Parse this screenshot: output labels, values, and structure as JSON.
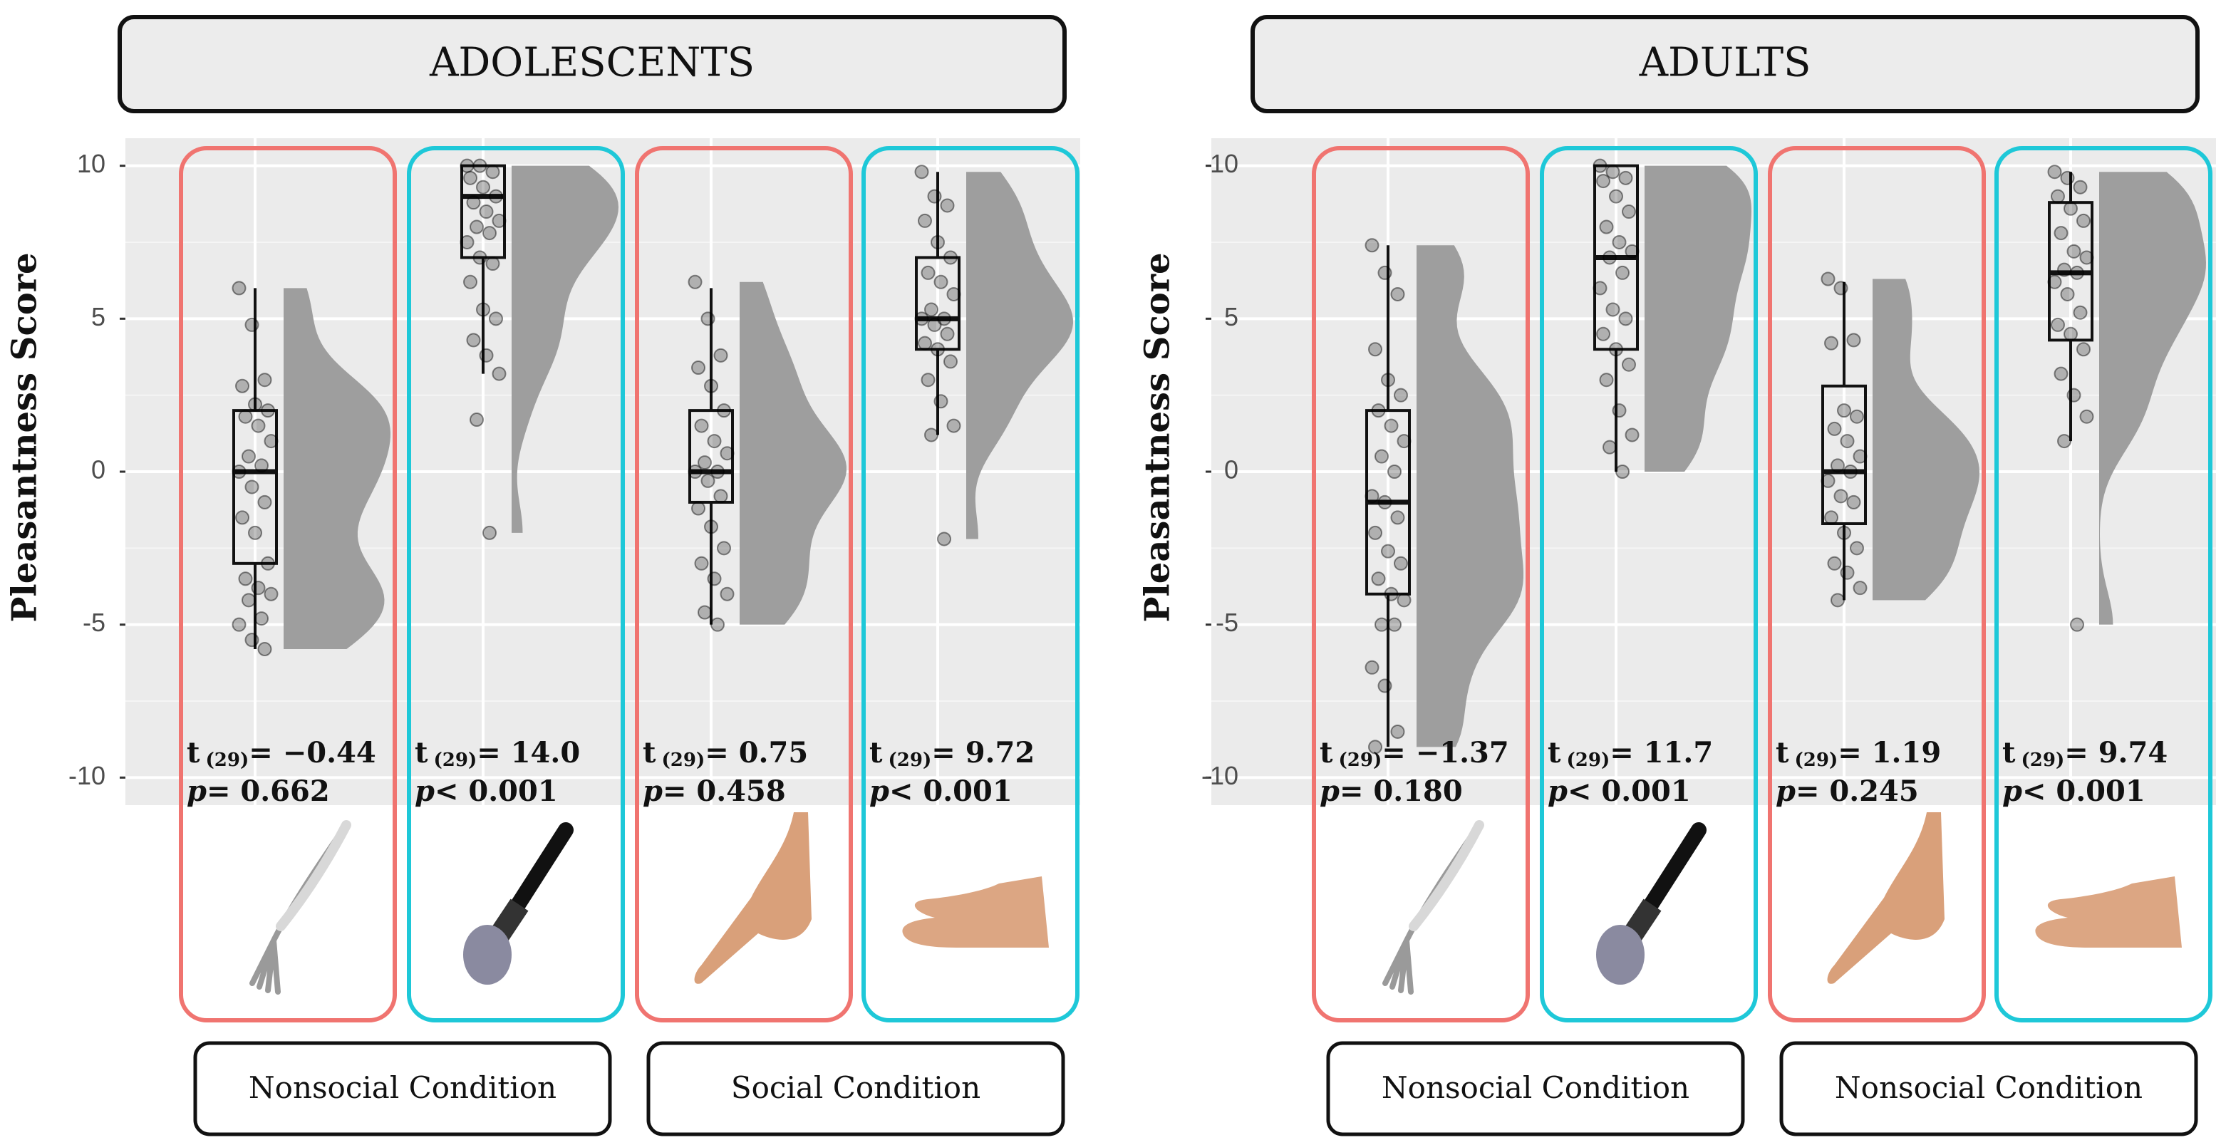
{
  "chart_data": [
    {
      "type": "raincloud",
      "title": "ADOLESCENTS",
      "y_label": "Pleasantness Score",
      "ylim": [
        -10.9,
        10.9
      ],
      "yticks": [
        10,
        5,
        0,
        -5,
        -10
      ],
      "grid": true,
      "conditions": [
        "Nonsocial Condition",
        "Social Condition"
      ],
      "groups": [
        {
          "color": "#f07470",
          "whisker_low": -5.8,
          "q1": -3,
          "median": 0,
          "q3": 2,
          "whisker_high": 6,
          "points": [
            6,
            4.8,
            3,
            2.8,
            2.2,
            2,
            1.8,
            1.5,
            1,
            0.5,
            0.2,
            0,
            -0.5,
            -1,
            -1.5,
            -2,
            -3,
            -3.5,
            -3.8,
            -4,
            -4.2,
            -4.8,
            -5,
            -5.5,
            -5.8
          ],
          "stat_t": [
            "t",
            "(29)",
            "= −0.44"
          ],
          "stat_p": [
            "p",
            "= 0.662"
          ]
        },
        {
          "color": "#1ec8d8",
          "whisker_low": 3.2,
          "q1": 7,
          "median": 9,
          "q3": 10,
          "whisker_high": 10,
          "points": [
            10,
            10,
            9.8,
            9.6,
            9.3,
            9,
            8.8,
            8.5,
            8.2,
            8,
            7.8,
            7.5,
            7,
            6.8,
            6.2,
            5.3,
            5,
            4.3,
            3.8,
            3.2,
            1.7,
            -2
          ],
          "stat_t": [
            "t",
            "(29)",
            "= 14.0"
          ],
          "stat_p": [
            "p",
            "< 0.001"
          ]
        },
        {
          "color": "#f07470",
          "whisker_low": -5,
          "q1": -1,
          "median": 0,
          "q3": 2,
          "whisker_high": 6,
          "points": [
            6.2,
            5,
            3.8,
            3.4,
            2.8,
            2,
            1.5,
            1,
            0.6,
            0.3,
            0,
            0,
            -0.3,
            -0.8,
            -1.2,
            -1.8,
            -2.5,
            -3,
            -3.5,
            -4,
            -4.6,
            -5
          ],
          "stat_t": [
            "t",
            "(29)",
            "= 0.75"
          ],
          "stat_p": [
            "p",
            "= 0.458"
          ]
        },
        {
          "color": "#1ec8d8",
          "whisker_low": 1.2,
          "q1": 4,
          "median": 5,
          "q3": 7,
          "whisker_high": 9.8,
          "points": [
            9.8,
            9,
            8.7,
            8.2,
            7.5,
            7,
            6.5,
            6.2,
            5.8,
            5.3,
            5,
            5,
            4.8,
            4.5,
            4.2,
            4,
            3.6,
            3,
            2.3,
            1.5,
            1.2,
            -2.2
          ],
          "stat_t": [
            "t",
            "(29)",
            "= 9.72"
          ],
          "stat_p": [
            "p",
            "< 0.001"
          ]
        }
      ]
    },
    {
      "type": "raincloud",
      "title": "ADULTS",
      "y_label": "Pleasantness Score",
      "ylim": [
        -10.9,
        10.9
      ],
      "yticks": [
        10,
        5,
        0,
        -5,
        -10
      ],
      "grid": true,
      "conditions": [
        "Nonsocial Condition",
        "Nonsocial Condition"
      ],
      "groups": [
        {
          "color": "#f07470",
          "whisker_low": -9,
          "q1": -4,
          "median": -1,
          "q3": 2,
          "whisker_high": 7.4,
          "points": [
            7.4,
            6.5,
            5.8,
            4,
            3,
            2.5,
            2,
            1.5,
            1,
            0.5,
            0,
            -0.8,
            -1,
            -1.5,
            -2,
            -2.6,
            -3,
            -3.5,
            -4,
            -4.2,
            -5,
            -5,
            -6.4,
            -7,
            -8.5,
            -9
          ],
          "stat_t": [
            "t",
            "(29)",
            "= −1.37"
          ],
          "stat_p": [
            "p",
            "= 0.180"
          ]
        },
        {
          "color": "#1ec8d8",
          "whisker_low": 0,
          "q1": 4,
          "median": 7,
          "q3": 10,
          "whisker_high": 10,
          "points": [
            10,
            9.8,
            9.6,
            9.5,
            9,
            8.5,
            8,
            7.5,
            7.2,
            7,
            6.5,
            6,
            5.3,
            5,
            4.5,
            4,
            3.5,
            3,
            2,
            1.2,
            0.8,
            0
          ],
          "stat_t": [
            "t",
            "(29)",
            "= 11.7"
          ],
          "stat_p": [
            "p",
            "< 0.001"
          ]
        },
        {
          "color": "#f07470",
          "whisker_low": -4.2,
          "q1": -1.7,
          "median": 0,
          "q3": 2.8,
          "whisker_high": 6.2,
          "points": [
            6.3,
            6,
            4.3,
            4.2,
            2,
            1.8,
            1.4,
            1,
            0.5,
            0.2,
            0,
            -0.3,
            -0.8,
            -1,
            -1.5,
            -2,
            -2.5,
            -3,
            -3.3,
            -3.8,
            -4.2
          ],
          "stat_t": [
            "t",
            "(29)",
            "= 1.19"
          ],
          "stat_p": [
            "p",
            "= 0.245"
          ]
        },
        {
          "color": "#1ec8d8",
          "whisker_low": 1,
          "q1": 4.3,
          "median": 6.5,
          "q3": 8.8,
          "whisker_high": 9.8,
          "points": [
            9.8,
            9.6,
            9.3,
            9,
            8.6,
            8.2,
            7.8,
            7.2,
            7,
            6.6,
            6.5,
            6.2,
            5.8,
            5.2,
            4.8,
            4.5,
            4,
            3.2,
            2.5,
            1.8,
            1,
            -5
          ],
          "stat_t": [
            "t",
            "(29)",
            "= 9.74"
          ],
          "stat_p": [
            "p",
            "< 0.001"
          ]
        }
      ]
    }
  ]
}
